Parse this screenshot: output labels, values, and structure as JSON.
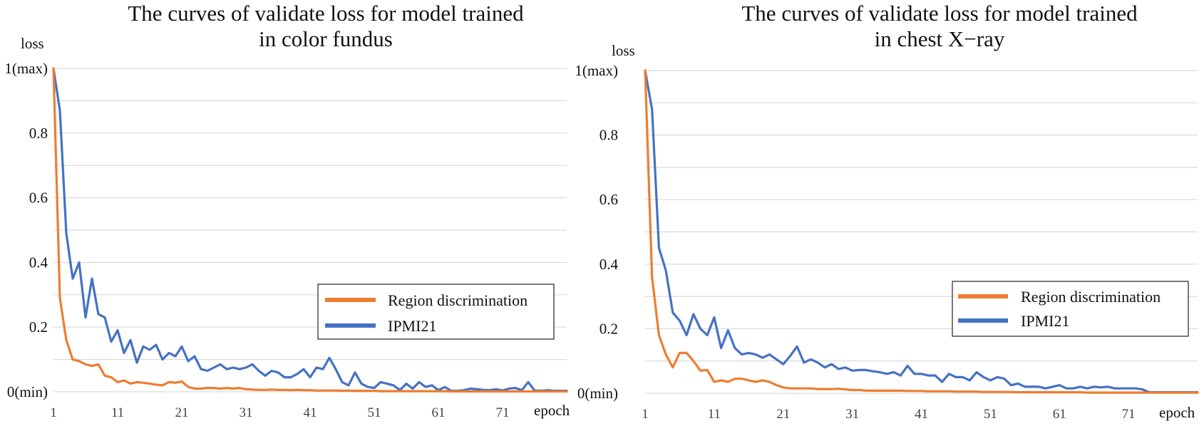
{
  "charts": [
    {
      "title_line1": "The curves of validate loss for model trained",
      "title_line2": "in color fundus",
      "ylabel": "loss",
      "xlabel": "epoch",
      "yticks": [
        "0(min)",
        "0.2",
        "0.4",
        "0.6",
        "0.8",
        "1(max)"
      ],
      "xticks": [
        "1",
        "11",
        "21",
        "31",
        "41",
        "51",
        "61",
        "71"
      ]
    },
    {
      "title_line1": "The curves of validate loss for model trained",
      "title_line2": "in chest X−ray",
      "ylabel": "loss",
      "xlabel": "epoch",
      "yticks": [
        "0(min)",
        "0.2",
        "0.4",
        "0.6",
        "0.8",
        "1(max)"
      ],
      "xticks": [
        "1",
        "11",
        "21",
        "31",
        "41",
        "51",
        "61",
        "71"
      ]
    }
  ],
  "legend": {
    "region": "Region discrimination",
    "ipmi": "IPMI21"
  },
  "colors": {
    "region": "#ed7d31",
    "ipmi": "#4472c4",
    "grid": "#d9d9d9"
  },
  "chart_data": [
    {
      "type": "line",
      "title": "The curves of validate loss for model trained in color fundus",
      "xlabel": "epoch",
      "ylabel": "loss",
      "ylim": [
        0,
        1
      ],
      "xlim": [
        1,
        81
      ],
      "series": [
        {
          "name": "Region discrimination",
          "x": [
            1,
            2,
            3,
            4,
            5,
            6,
            7,
            8,
            9,
            10,
            11,
            12,
            13,
            14,
            15,
            16,
            17,
            18,
            19,
            20,
            21,
            22,
            23,
            24,
            25,
            26,
            27,
            28,
            29,
            30,
            31,
            32,
            33,
            34,
            35,
            36,
            37,
            38,
            39,
            40,
            41,
            42,
            43,
            44,
            45,
            46,
            47,
            48,
            49,
            50,
            51,
            52,
            53,
            54,
            55,
            56,
            57,
            58,
            59,
            60,
            61,
            62,
            63,
            64,
            65,
            66,
            67,
            68,
            69,
            70,
            71,
            72,
            73,
            74,
            75,
            76,
            77,
            78,
            79,
            80,
            81
          ],
          "values": [
            1.0,
            0.29,
            0.16,
            0.1,
            0.095,
            0.085,
            0.08,
            0.085,
            0.05,
            0.045,
            0.03,
            0.035,
            0.025,
            0.03,
            0.028,
            0.025,
            0.022,
            0.02,
            0.03,
            0.028,
            0.032,
            0.015,
            0.01,
            0.01,
            0.012,
            0.012,
            0.01,
            0.012,
            0.01,
            0.012,
            0.008,
            0.007,
            0.006,
            0.006,
            0.007,
            0.006,
            0.006,
            0.005,
            0.006,
            0.005,
            0.005,
            0.004,
            0.004,
            0.004,
            0.004,
            0.003,
            0.004,
            0.003,
            0.003,
            0.003,
            0.003,
            0.002,
            0.002,
            0.002,
            0.002,
            0.002,
            0.002,
            0.002,
            0.002,
            0.002,
            0.002,
            0.002,
            0.001,
            0.001,
            0.001,
            0.001,
            0.001,
            0.001,
            0.001,
            0.001,
            0.001,
            0.001,
            0.001,
            0.001,
            0.001,
            0.001,
            0.001,
            0.001,
            0.001,
            0.001,
            0.001
          ]
        },
        {
          "name": "IPMI21",
          "x": [
            1,
            2,
            3,
            4,
            5,
            6,
            7,
            8,
            9,
            10,
            11,
            12,
            13,
            14,
            15,
            16,
            17,
            18,
            19,
            20,
            21,
            22,
            23,
            24,
            25,
            26,
            27,
            28,
            29,
            30,
            31,
            32,
            33,
            34,
            35,
            36,
            37,
            38,
            39,
            40,
            41,
            42,
            43,
            44,
            45,
            46,
            47,
            48,
            49,
            50,
            51,
            52,
            53,
            54,
            55,
            56,
            57,
            58,
            59,
            60,
            61,
            62,
            63,
            64,
            65,
            66,
            67,
            68,
            69,
            70,
            71,
            72,
            73,
            74,
            75,
            76,
            77,
            78,
            79,
            80,
            81
          ],
          "values": [
            1.0,
            0.87,
            0.49,
            0.35,
            0.4,
            0.23,
            0.35,
            0.24,
            0.23,
            0.155,
            0.19,
            0.12,
            0.16,
            0.09,
            0.14,
            0.13,
            0.145,
            0.1,
            0.12,
            0.11,
            0.14,
            0.095,
            0.11,
            0.07,
            0.065,
            0.075,
            0.085,
            0.07,
            0.075,
            0.07,
            0.075,
            0.085,
            0.065,
            0.05,
            0.065,
            0.06,
            0.045,
            0.045,
            0.055,
            0.07,
            0.045,
            0.075,
            0.07,
            0.105,
            0.07,
            0.03,
            0.02,
            0.06,
            0.025,
            0.015,
            0.012,
            0.03,
            0.025,
            0.02,
            0.005,
            0.025,
            0.01,
            0.03,
            0.015,
            0.02,
            0.005,
            0.015,
            0.003,
            0.003,
            0.005,
            0.01,
            0.008,
            0.006,
            0.005,
            0.008,
            0.004,
            0.01,
            0.012,
            0.005,
            0.03,
            0.004,
            0.003,
            0.005,
            0.003,
            0.003,
            0.003
          ]
        }
      ]
    },
    {
      "type": "line",
      "title": "The curves of validate loss for model trained in chest X−ray",
      "xlabel": "epoch",
      "ylabel": "loss",
      "ylim": [
        0,
        1
      ],
      "xlim": [
        1,
        81
      ],
      "series": [
        {
          "name": "Region discrimination",
          "x": [
            1,
            2,
            3,
            4,
            5,
            6,
            7,
            8,
            9,
            10,
            11,
            12,
            13,
            14,
            15,
            16,
            17,
            18,
            19,
            20,
            21,
            22,
            23,
            24,
            25,
            26,
            27,
            28,
            29,
            30,
            31,
            32,
            33,
            34,
            35,
            36,
            37,
            38,
            39,
            40,
            41,
            42,
            43,
            44,
            45,
            46,
            47,
            48,
            49,
            50,
            51,
            52,
            53,
            54,
            55,
            56,
            57,
            58,
            59,
            60,
            61,
            62,
            63,
            64,
            65,
            66,
            67,
            68,
            69,
            70,
            71,
            72,
            73,
            74,
            75,
            76,
            77,
            78,
            79,
            80,
            81
          ],
          "values": [
            1.0,
            0.36,
            0.18,
            0.12,
            0.08,
            0.125,
            0.125,
            0.1,
            0.07,
            0.072,
            0.035,
            0.04,
            0.035,
            0.045,
            0.045,
            0.04,
            0.035,
            0.04,
            0.035,
            0.025,
            0.018,
            0.015,
            0.015,
            0.015,
            0.015,
            0.013,
            0.013,
            0.013,
            0.014,
            0.012,
            0.01,
            0.01,
            0.008,
            0.008,
            0.008,
            0.008,
            0.008,
            0.008,
            0.007,
            0.007,
            0.007,
            0.006,
            0.006,
            0.006,
            0.006,
            0.005,
            0.005,
            0.005,
            0.005,
            0.004,
            0.004,
            0.004,
            0.004,
            0.004,
            0.003,
            0.003,
            0.003,
            0.003,
            0.003,
            0.003,
            0.003,
            0.003,
            0.003,
            0.003,
            0.002,
            0.002,
            0.002,
            0.002,
            0.002,
            0.002,
            0.002,
            0.002,
            0.002,
            0.002,
            0.002,
            0.002,
            0.002,
            0.002,
            0.002,
            0.002,
            0.002
          ]
        },
        {
          "name": "IPMI21",
          "x": [
            1,
            2,
            3,
            4,
            5,
            6,
            7,
            8,
            9,
            10,
            11,
            12,
            13,
            14,
            15,
            16,
            17,
            18,
            19,
            20,
            21,
            22,
            23,
            24,
            25,
            26,
            27,
            28,
            29,
            30,
            31,
            32,
            33,
            34,
            35,
            36,
            37,
            38,
            39,
            40,
            41,
            42,
            43,
            44,
            45,
            46,
            47,
            48,
            49,
            50,
            51,
            52,
            53,
            54,
            55,
            56,
            57,
            58,
            59,
            60,
            61,
            62,
            63,
            64,
            65,
            66,
            67,
            68,
            69,
            70,
            71,
            72,
            73,
            74,
            75,
            76,
            77,
            78,
            79,
            80,
            81
          ],
          "values": [
            1.0,
            0.88,
            0.45,
            0.38,
            0.25,
            0.225,
            0.18,
            0.245,
            0.2,
            0.18,
            0.235,
            0.14,
            0.195,
            0.14,
            0.12,
            0.125,
            0.12,
            0.11,
            0.12,
            0.105,
            0.09,
            0.115,
            0.145,
            0.095,
            0.105,
            0.095,
            0.08,
            0.09,
            0.075,
            0.08,
            0.07,
            0.072,
            0.072,
            0.068,
            0.065,
            0.06,
            0.065,
            0.055,
            0.085,
            0.06,
            0.06,
            0.055,
            0.055,
            0.035,
            0.06,
            0.05,
            0.05,
            0.04,
            0.065,
            0.05,
            0.04,
            0.05,
            0.045,
            0.025,
            0.03,
            0.02,
            0.02,
            0.02,
            0.015,
            0.02,
            0.025,
            0.015,
            0.015,
            0.02,
            0.015,
            0.02,
            0.018,
            0.02,
            0.015,
            0.015,
            0.015,
            0.015,
            0.012,
            0.003,
            0.003,
            0.003,
            0.003,
            0.003,
            0.003,
            0.003,
            0.003
          ]
        }
      ]
    }
  ]
}
